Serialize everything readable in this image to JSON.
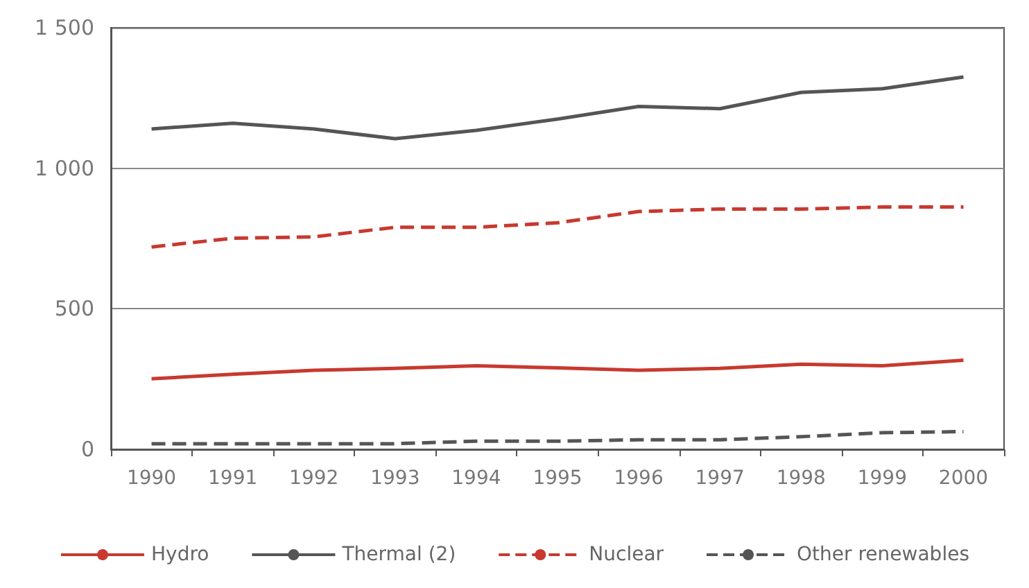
{
  "chart_data": {
    "type": "line",
    "categories": [
      "1990",
      "1991",
      "1992",
      "1993",
      "1994",
      "1995",
      "1996",
      "1997",
      "1998",
      "1999",
      "2000"
    ],
    "series": [
      {
        "name": "Hydro",
        "color": "#c8392f",
        "line_style": "solid",
        "values": [
          251,
          267,
          281,
          288,
          297,
          290,
          281,
          288,
          303,
          297,
          317
        ]
      },
      {
        "name": "Thermal (2)",
        "color": "#555555",
        "line_style": "solid",
        "values": [
          1140,
          1160,
          1140,
          1105,
          1135,
          1175,
          1220,
          1212,
          1270,
          1283,
          1325
        ]
      },
      {
        "name": "Nuclear",
        "color": "#c8392f",
        "line_style": "dashed",
        "values": [
          720,
          751,
          756,
          790,
          790,
          806,
          846,
          855,
          855,
          862,
          862
        ]
      },
      {
        "name": "Other renewables",
        "color": "#555555",
        "line_style": "dashed",
        "values": [
          20,
          20,
          20,
          20,
          29,
          29,
          34,
          34,
          45,
          59,
          63
        ]
      }
    ],
    "ylim": [
      0,
      1500
    ],
    "yticks": [
      0,
      500,
      {
        "value": 1000,
        "label": "1 000"
      },
      {
        "value": 1500,
        "label": "1 500"
      }
    ],
    "grid": "y",
    "legend": "bottom",
    "marker": "none"
  }
}
